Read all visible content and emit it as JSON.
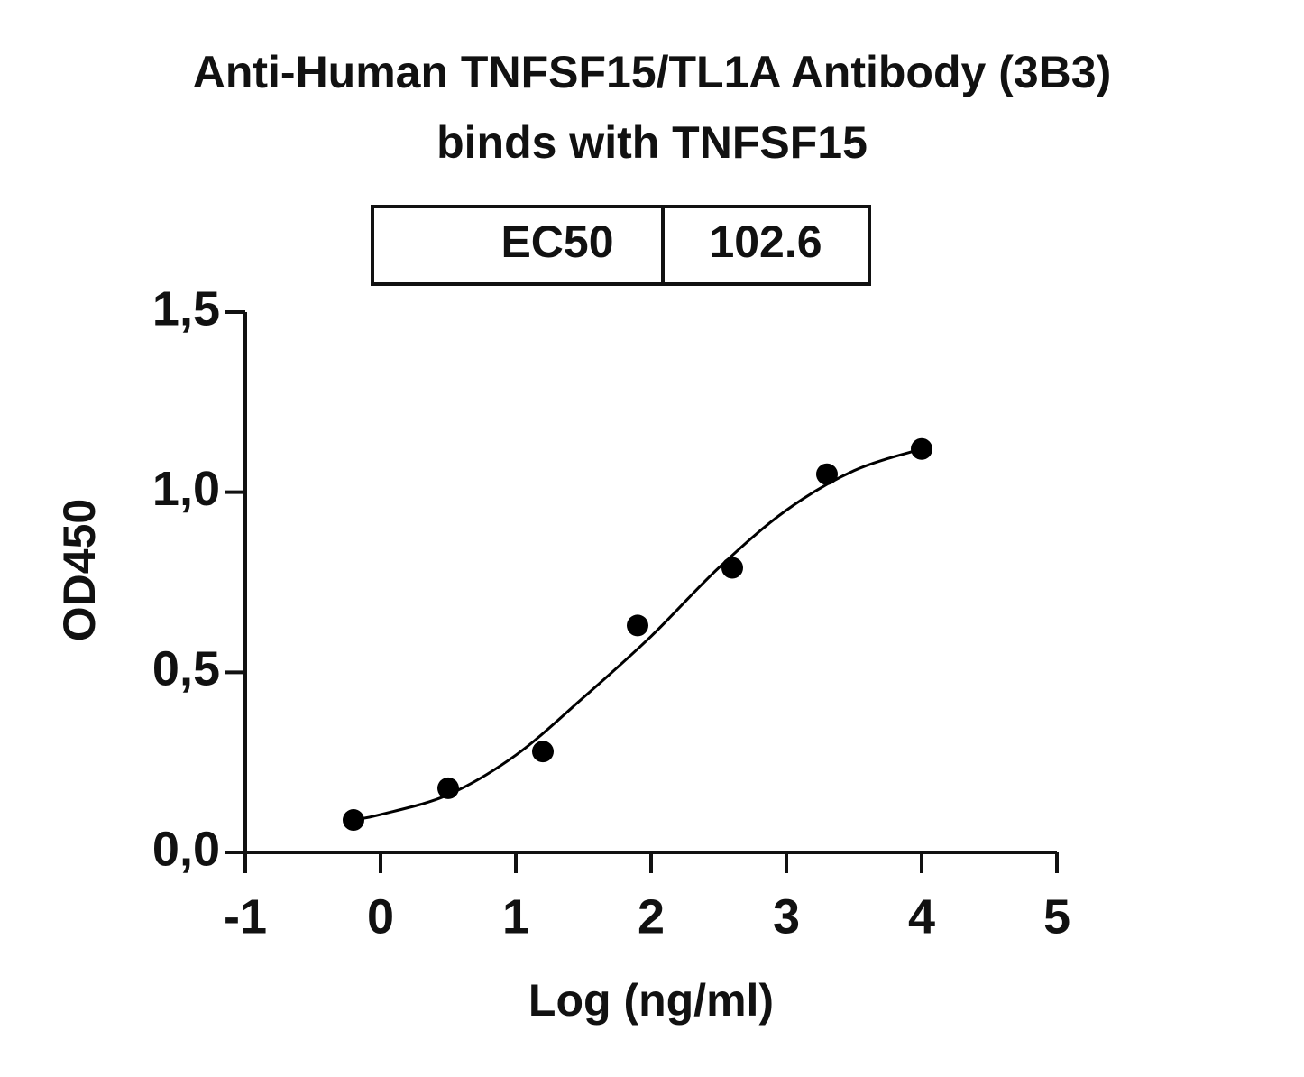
{
  "chart_data": {
    "type": "scatter",
    "title": "Anti-Human TNFSF15/TL1A Antibody (3B3)",
    "subtitle": "binds with TNFSF15",
    "annotation": {
      "label": "EC50",
      "value": "102.6"
    },
    "x_label": "Log (ng/ml)",
    "y_label": "OD450",
    "xlim": [
      -1,
      5
    ],
    "xticks": [
      -1,
      0,
      1,
      2,
      3,
      4,
      5
    ],
    "ylim": [
      0,
      1.5
    ],
    "yticks": [
      {
        "value": 0,
        "label": "0,0"
      },
      {
        "value": 0.5,
        "label": "0,5"
      },
      {
        "value": 1,
        "label": "1,0"
      },
      {
        "value": 1.5,
        "label": "1,5"
      }
    ],
    "grid": false,
    "series": [
      {
        "type": "scatter",
        "color": "#000000",
        "x": [
          -0.2,
          0.5,
          1.2,
          1.9,
          2.6,
          3.3,
          4.0
        ],
        "values": [
          0.09,
          0.178,
          0.28,
          0.63,
          0.79,
          1.05,
          1.12
        ]
      },
      {
        "type": "line",
        "color": "#000000",
        "x": [
          -0.2,
          0,
          0.5,
          1.0,
          1.5,
          2.0,
          2.5,
          3.0,
          3.5,
          4.0
        ],
        "values": [
          0.09,
          0.105,
          0.16,
          0.27,
          0.43,
          0.6,
          0.79,
          0.95,
          1.06,
          1.12
        ]
      }
    ]
  }
}
